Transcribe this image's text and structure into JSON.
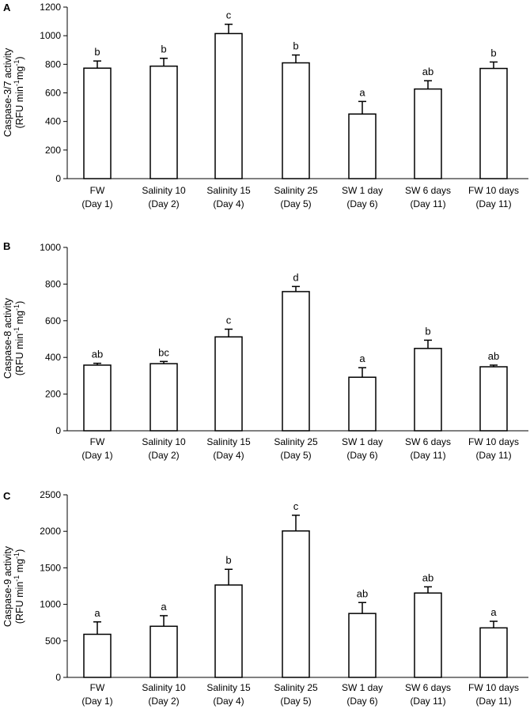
{
  "figure": {
    "background": "#ffffff",
    "bar_fill": "#ffffff",
    "stroke": "#000000"
  },
  "chart_data": [
    {
      "type": "bar",
      "panel": "A",
      "ylabel_line1": "Caspase-3/7 activity",
      "ylabel_line2_parts": [
        "(RFU min",
        "-1",
        "mg",
        "-1",
        ")"
      ],
      "categories": [
        [
          "FW",
          "(Day 1)"
        ],
        [
          "Salinity 10",
          "(Day 2)"
        ],
        [
          "Salinity 15",
          "(Day 4)"
        ],
        [
          "Salinity 25",
          "(Day 5)"
        ],
        [
          "SW 1 day",
          "(Day 6)"
        ],
        [
          "SW 6 days",
          "(Day 11)"
        ],
        [
          "FW 10 days",
          "(Day 11)"
        ]
      ],
      "values": [
        773,
        787,
        1015,
        810,
        452,
        627,
        771
      ],
      "errors": [
        50,
        55,
        65,
        55,
        88,
        58,
        45
      ],
      "significance": [
        "b",
        "b",
        "c",
        "b",
        "a",
        "ab",
        "b"
      ],
      "ylim": [
        0,
        1200
      ],
      "yticks": [
        0,
        200,
        400,
        600,
        800,
        1000,
        1200
      ]
    },
    {
      "type": "bar",
      "panel": "B",
      "ylabel_line1": "Caspase-8 activity",
      "ylabel_line2_parts": [
        "(RFU min",
        "-1",
        " mg",
        "-1",
        ")"
      ],
      "categories": [
        [
          "FW",
          "(Day 1)"
        ],
        [
          "Salinity 10",
          "(Day 2)"
        ],
        [
          "Salinity 15",
          "(Day 4)"
        ],
        [
          "Salinity 25",
          "(Day 5)"
        ],
        [
          "SW 1 day",
          "(Day 6)"
        ],
        [
          "SW 6 days",
          "(Day 11)"
        ],
        [
          "FW 10 days",
          "(Day 11)"
        ]
      ],
      "values": [
        358,
        366,
        512,
        759,
        292,
        449,
        349
      ],
      "errors": [
        10,
        12,
        42,
        28,
        52,
        45,
        9
      ],
      "significance": [
        "ab",
        "bc",
        "c",
        "d",
        "a",
        "b",
        "ab"
      ],
      "ylim": [
        0,
        1000
      ],
      "yticks": [
        0,
        200,
        400,
        600,
        800,
        1000
      ]
    },
    {
      "type": "bar",
      "panel": "C",
      "ylabel_line1": "Caspase-9 activity",
      "ylabel_line2_parts": [
        "(RFU min",
        "-1",
        " mg",
        "-1",
        ")"
      ],
      "categories": [
        [
          "FW",
          "(Day 1)"
        ],
        [
          "Salinity 10",
          "(Day 2)"
        ],
        [
          "Salinity 15",
          "(Day 4)"
        ],
        [
          "Salinity 25",
          "(Day 5)"
        ],
        [
          "SW 1 day",
          "(Day 6)"
        ],
        [
          "SW 6 days",
          "(Day 11)"
        ],
        [
          "FW 10 days",
          "(Day 11)"
        ]
      ],
      "values": [
        590,
        700,
        1265,
        2005,
        875,
        1155,
        678
      ],
      "errors": [
        170,
        145,
        215,
        215,
        150,
        85,
        90
      ],
      "significance": [
        "a",
        "a",
        "b",
        "c",
        "ab",
        "ab",
        "a"
      ],
      "ylim": [
        0,
        2500
      ],
      "yticks": [
        0,
        500,
        1000,
        1500,
        2000,
        2500
      ]
    }
  ]
}
